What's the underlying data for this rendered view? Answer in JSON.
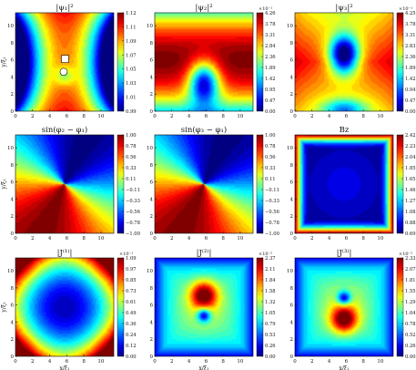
{
  "figure": {
    "colormap": "jet",
    "x_label": "x/ξ₁",
    "y_label": "y/ξ₁",
    "x_ticks": [
      "0",
      "2",
      "4",
      "6",
      "8",
      "10"
    ],
    "y_ticks": [
      "0",
      "2",
      "4",
      "6",
      "8",
      "10"
    ]
  },
  "chart_data": [
    {
      "type": "heatmap",
      "title": "|ψ₁|²",
      "field": "psi1",
      "multiplier": "",
      "colorbar_ticks": [
        "1.12",
        "1.11",
        "1.09",
        "1.07",
        "1.05",
        "1.03",
        "1.01",
        "0.99"
      ],
      "markers": [
        "square",
        "circle"
      ],
      "xlim": [
        0,
        11.5
      ],
      "ylim": [
        0,
        11.5
      ]
    },
    {
      "type": "heatmap",
      "title": "|ψ₂|²",
      "field": "psi2",
      "multiplier": "×10⁻¹",
      "colorbar_ticks": [
        "4.26",
        "3.78",
        "3.31",
        "2.84",
        "2.36",
        "1.89",
        "1.42",
        "0.95",
        "0.47",
        "0.00"
      ],
      "xlim": [
        0,
        11.5
      ],
      "ylim": [
        0,
        11.5
      ]
    },
    {
      "type": "heatmap",
      "title": "|ψ₃|²",
      "field": "psi3",
      "multiplier": "×10⁻¹",
      "colorbar_ticks": [
        "4.25",
        "3.78",
        "3.31",
        "2.83",
        "2.36",
        "1.89",
        "1.42",
        "0.94",
        "0.47",
        "0.00"
      ],
      "xlim": [
        0,
        11.5
      ],
      "ylim": [
        0,
        11.5
      ]
    },
    {
      "type": "heatmap",
      "title": "sin(φ₂ − φ₁)",
      "field": "phase21",
      "multiplier": "",
      "colorbar_ticks": [
        "1.00",
        "0.78",
        "0.56",
        "0.33",
        "0.11",
        "−0.11",
        "−0.33",
        "−0.56",
        "−0.78",
        "−1.00"
      ],
      "xlim": [
        0,
        11.5
      ],
      "ylim": [
        0,
        11.5
      ]
    },
    {
      "type": "heatmap",
      "title": "sin(φ₃ − φ₁)",
      "field": "phase31",
      "multiplier": "",
      "colorbar_ticks": [
        "1.00",
        "0.78",
        "0.56",
        "0.33",
        "0.11",
        "−0.11",
        "−0.33",
        "−0.56",
        "−0.78",
        "−1.00"
      ],
      "xlim": [
        0,
        11.5
      ],
      "ylim": [
        0,
        11.5
      ]
    },
    {
      "type": "heatmap",
      "title": "Bz",
      "field": "bz",
      "multiplier": "",
      "colorbar_ticks": [
        "2.42",
        "2.23",
        "2.04",
        "1.85",
        "1.65",
        "1.46",
        "1.27",
        "1.08",
        "0.88",
        "0.69"
      ],
      "xlim": [
        0,
        11.5
      ],
      "ylim": [
        0,
        11.5
      ]
    },
    {
      "type": "heatmap",
      "title": "|J⁽¹⁾|",
      "field": "j1",
      "multiplier": "×10⁻¹",
      "colorbar_ticks": [
        "1.09",
        "0.97",
        "0.85",
        "0.73",
        "0.61",
        "0.49",
        "0.36",
        "0.24",
        "0.12",
        "0.00"
      ],
      "xlim": [
        0,
        11.5
      ],
      "ylim": [
        0,
        11.5
      ]
    },
    {
      "type": "heatmap",
      "title": "|J⁽²⁾|",
      "field": "j2",
      "multiplier": "×10⁻²",
      "colorbar_ticks": [
        "2.37",
        "2.11",
        "1.84",
        "1.58",
        "1.32",
        "1.05",
        "0.79",
        "0.53",
        "0.26",
        "0.00"
      ],
      "xlim": [
        0,
        11.5
      ],
      "ylim": [
        0,
        11.5
      ]
    },
    {
      "type": "heatmap",
      "title": "|J⁽³⁾|",
      "field": "j3",
      "multiplier": "×10⁻²",
      "colorbar_ticks": [
        "2.33",
        "2.07",
        "1.81",
        "1.55",
        "1.29",
        "1.04",
        "0.78",
        "0.52",
        "0.26",
        "0.00"
      ],
      "xlim": [
        0,
        11.5
      ],
      "ylim": [
        0,
        11.5
      ]
    }
  ]
}
